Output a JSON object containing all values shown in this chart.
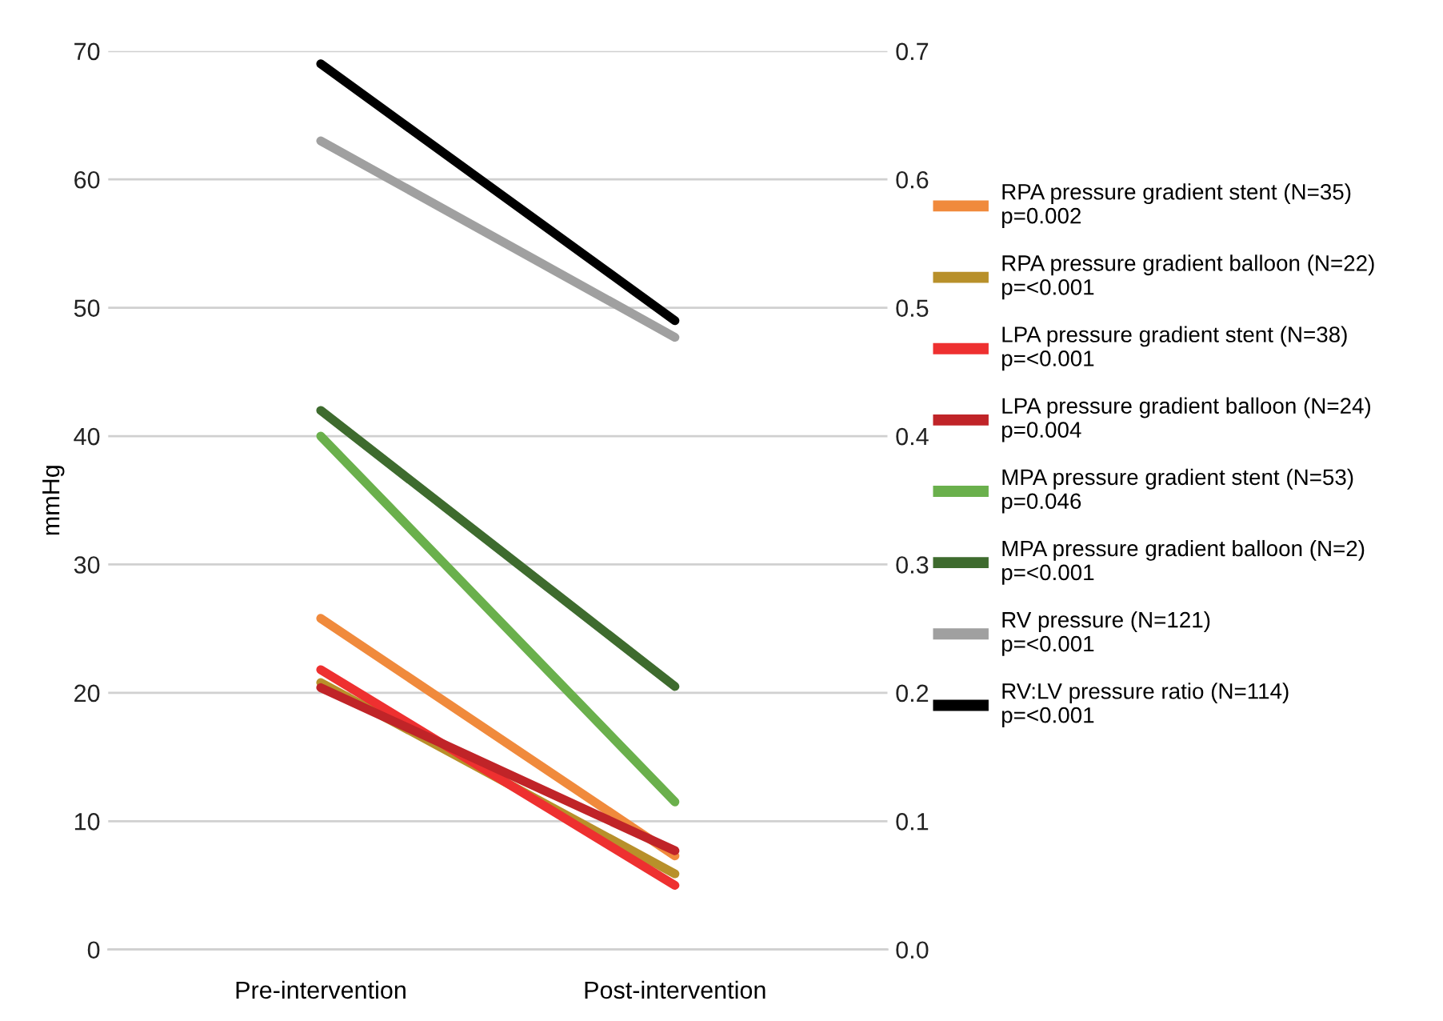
{
  "chart_data": {
    "type": "line",
    "ylabel": "mmHg",
    "categories": [
      "Pre-intervention",
      "Post-intervention"
    ],
    "series": [
      {
        "name": "RPA pressure gradient stent (N=35)\np=0.002",
        "color": "#f08a3c",
        "values": [
          25.8,
          7.3
        ]
      },
      {
        "name": "RPA pressure gradient balloon (N=22)\np=<0.001",
        "color": "#b8902a",
        "values": [
          20.8,
          5.9
        ]
      },
      {
        "name": "LPA pressure gradient stent (N=38)\np=<0.001",
        "color": "#ee3030",
        "values": [
          21.8,
          5.0
        ]
      },
      {
        "name": "LPA pressure gradient balloon (N=24)\np=0.004",
        "color": "#c02428",
        "values": [
          20.4,
          7.7
        ]
      },
      {
        "name": "MPA pressure gradient stent (N=53)\np=0.046",
        "color": "#6ab04c",
        "values": [
          40.0,
          11.5
        ]
      },
      {
        "name": "MPA pressure gradient balloon (N=2)\np=<0.001",
        "color": "#3e6b2e",
        "values": [
          42.0,
          20.5
        ]
      },
      {
        "name": "RV pressure (N=121)\np=<0.001",
        "color": "#a0a0a0",
        "values": [
          63.0,
          47.7
        ]
      },
      {
        "name": "RV:LV pressure ratio (N=114)\np=<0.001",
        "color": "#000000",
        "values": [
          0.69,
          0.49
        ],
        "axis": "y2"
      }
    ],
    "ylim": [
      0,
      70
    ],
    "yticks": [
      0,
      10,
      20,
      30,
      40,
      50,
      60,
      70
    ],
    "y2lim": [
      0,
      0.7
    ],
    "y2ticks": [
      {
        "value": 0,
        "label": "0.0"
      },
      0.1,
      0.2,
      0.3,
      0.4,
      0.5,
      0.6,
      0.7
    ],
    "grid": "y",
    "legend": "right",
    "marker": "none",
    "line_style": "solid"
  }
}
